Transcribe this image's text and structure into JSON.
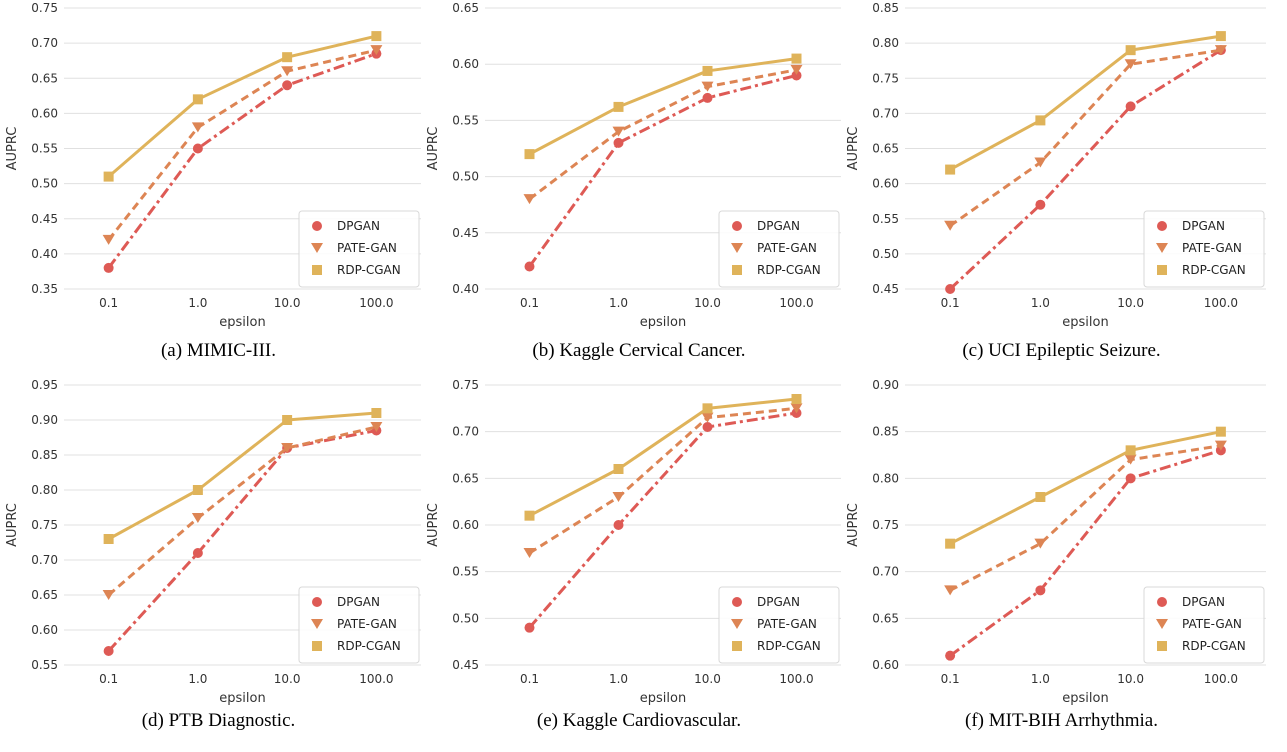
{
  "chart_data": [
    {
      "type": "line",
      "caption": "(a) MIMIC-III.",
      "xlabel": "epsilon",
      "ylabel": "AUPRC",
      "categories": [
        "0.1",
        "1.0",
        "10.0",
        "100.0"
      ],
      "yticks": [
        "0.35",
        "0.40",
        "0.45",
        "0.50",
        "0.55",
        "0.60",
        "0.65",
        "0.70",
        "0.75"
      ],
      "ylim": [
        0.35,
        0.75
      ],
      "grid": true,
      "legend_position": "bottom-right",
      "series": [
        {
          "name": "DPGAN",
          "values": [
            0.38,
            0.55,
            0.64,
            0.685
          ]
        },
        {
          "name": "PATE-GAN",
          "values": [
            0.42,
            0.58,
            0.66,
            0.69
          ]
        },
        {
          "name": "RDP-CGAN",
          "values": [
            0.51,
            0.62,
            0.68,
            0.71
          ]
        }
      ]
    },
    {
      "type": "line",
      "caption": "(b) Kaggle Cervical Cancer.",
      "xlabel": "epsilon",
      "ylabel": "AUPRC",
      "categories": [
        "0.1",
        "1.0",
        "10.0",
        "100.0"
      ],
      "yticks": [
        "0.40",
        "0.45",
        "0.50",
        "0.55",
        "0.60",
        "0.65"
      ],
      "ylim": [
        0.4,
        0.65
      ],
      "grid": true,
      "legend_position": "bottom-right",
      "series": [
        {
          "name": "DPGAN",
          "values": [
            0.42,
            0.53,
            0.57,
            0.59
          ]
        },
        {
          "name": "PATE-GAN",
          "values": [
            0.48,
            0.54,
            0.58,
            0.595
          ]
        },
        {
          "name": "RDP-CGAN",
          "values": [
            0.52,
            0.562,
            0.594,
            0.605
          ]
        }
      ]
    },
    {
      "type": "line",
      "caption": "(c) UCI Epileptic Seizure.",
      "xlabel": "epsilon",
      "ylabel": "AUPRC",
      "categories": [
        "0.1",
        "1.0",
        "10.0",
        "100.0"
      ],
      "yticks": [
        "0.45",
        "0.50",
        "0.55",
        "0.60",
        "0.65",
        "0.70",
        "0.75",
        "0.80",
        "0.85"
      ],
      "ylim": [
        0.45,
        0.85
      ],
      "grid": true,
      "legend_position": "bottom-right",
      "series": [
        {
          "name": "DPGAN",
          "values": [
            0.45,
            0.57,
            0.71,
            0.79
          ]
        },
        {
          "name": "PATE-GAN",
          "values": [
            0.54,
            0.63,
            0.77,
            0.79
          ]
        },
        {
          "name": "RDP-CGAN",
          "values": [
            0.62,
            0.69,
            0.79,
            0.81
          ]
        }
      ]
    },
    {
      "type": "line",
      "caption": "(d) PTB Diagnostic.",
      "xlabel": "epsilon",
      "ylabel": "AUPRC",
      "categories": [
        "0.1",
        "1.0",
        "10.0",
        "100.0"
      ],
      "yticks": [
        "0.55",
        "0.60",
        "0.65",
        "0.70",
        "0.75",
        "0.80",
        "0.85",
        "0.90",
        "0.95"
      ],
      "ylim": [
        0.55,
        0.95
      ],
      "grid": true,
      "legend_position": "bottom-right",
      "series": [
        {
          "name": "DPGAN",
          "values": [
            0.57,
            0.71,
            0.86,
            0.885
          ]
        },
        {
          "name": "PATE-GAN",
          "values": [
            0.65,
            0.76,
            0.86,
            0.89
          ]
        },
        {
          "name": "RDP-CGAN",
          "values": [
            0.73,
            0.8,
            0.9,
            0.91
          ]
        }
      ]
    },
    {
      "type": "line",
      "caption": "(e) Kaggle Cardiovascular.",
      "xlabel": "epsilon",
      "ylabel": "AUPRC",
      "categories": [
        "0.1",
        "1.0",
        "10.0",
        "100.0"
      ],
      "yticks": [
        "0.45",
        "0.50",
        "0.55",
        "0.60",
        "0.65",
        "0.70",
        "0.75"
      ],
      "ylim": [
        0.45,
        0.75
      ],
      "grid": true,
      "legend_position": "bottom-right",
      "series": [
        {
          "name": "DPGAN",
          "values": [
            0.49,
            0.6,
            0.705,
            0.72
          ]
        },
        {
          "name": "PATE-GAN",
          "values": [
            0.57,
            0.63,
            0.715,
            0.725
          ]
        },
        {
          "name": "RDP-CGAN",
          "values": [
            0.61,
            0.66,
            0.725,
            0.735
          ]
        }
      ]
    },
    {
      "type": "line",
      "caption": "(f) MIT-BIH Arrhythmia.",
      "xlabel": "epsilon",
      "ylabel": "AUPRC",
      "categories": [
        "0.1",
        "1.0",
        "10.0",
        "100.0"
      ],
      "yticks": [
        "0.60",
        "0.65",
        "0.70",
        "0.75",
        "0.80",
        "0.85",
        "0.90"
      ],
      "ylim": [
        0.6,
        0.9
      ],
      "grid": true,
      "legend_position": "bottom-right",
      "series": [
        {
          "name": "DPGAN",
          "values": [
            0.61,
            0.68,
            0.8,
            0.83
          ]
        },
        {
          "name": "PATE-GAN",
          "values": [
            0.68,
            0.73,
            0.82,
            0.835
          ]
        },
        {
          "name": "RDP-CGAN",
          "values": [
            0.73,
            0.78,
            0.83,
            0.85
          ]
        }
      ]
    }
  ],
  "series_styles": [
    {
      "color": "#de5a55",
      "line_style": "dash-dot",
      "marker": "circle"
    },
    {
      "color": "#dd8554",
      "line_style": "dashed",
      "marker": "triangle-down"
    },
    {
      "color": "#dfb35a",
      "line_style": "solid",
      "marker": "square"
    }
  ],
  "grid_color": "#e0e0e0"
}
